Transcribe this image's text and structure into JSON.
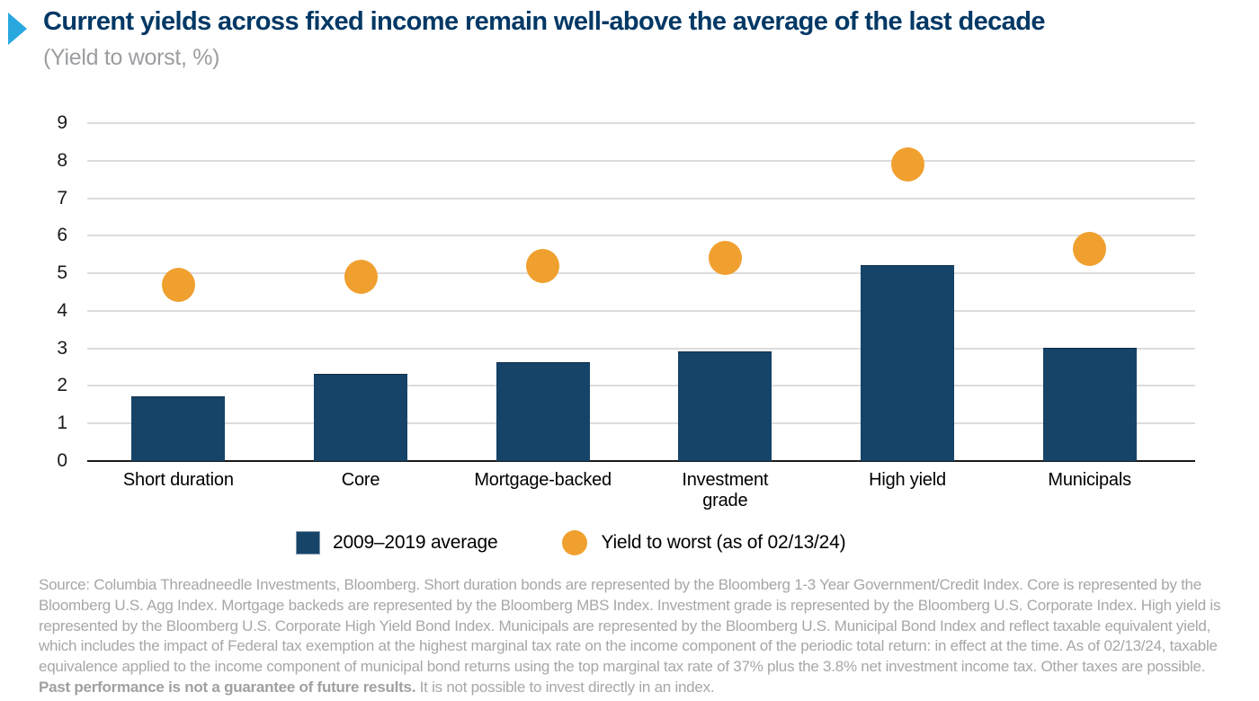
{
  "header": {
    "title": "Current yields across fixed income remain well-above the average of the last decade",
    "subtitle": "(Yield to worst, %)"
  },
  "colors": {
    "bar_navy": "#164368",
    "dot_orange": "#F0A02F",
    "title_navy": "#003865",
    "arrow_cyan": "#29A8E0",
    "subtitle_gray": "#9B9DA0",
    "source_gray": "#A7A7A7",
    "gridline_gray": "#DCDCDC"
  },
  "chart_data": {
    "type": "bar",
    "categories": [
      "Short duration",
      "Core",
      "Mortgage-backed",
      "Investment\ngrade",
      "High yield",
      "Municipals"
    ],
    "series": [
      {
        "name": "2009–2019 average",
        "marker": "bar",
        "color": "#164368",
        "values": [
          1.7,
          2.3,
          2.6,
          2.9,
          5.2,
          3.0
        ]
      },
      {
        "name": "Yield to worst (as of 02/13/24)",
        "marker": "dot",
        "color": "#F0A02F",
        "values": [
          4.7,
          4.9,
          5.2,
          5.4,
          7.9,
          5.65
        ]
      }
    ],
    "title": "Current yields across fixed income remain well-above the average of the last decade",
    "subtitle": "(Yield to worst, %)",
    "xlabel": "",
    "ylabel": "Yield to worst, %",
    "ylim": [
      0,
      9
    ],
    "yticks": [
      0,
      1,
      2,
      3,
      4,
      5,
      6,
      7,
      8,
      9
    ],
    "grid": true,
    "legend_position": "bottom"
  },
  "source": {
    "text_before": "Source: Columbia Threadneedle Investments, Bloomberg. Short duration bonds are represented by the Bloomberg 1-3 Year Government/Credit Index. Core is represented by the Bloomberg U.S. Agg Index. Mortgage backeds are represented by the Bloomberg MBS Index. Investment grade is represented by the Bloomberg U.S. Corporate Index. High yield is represented by the Bloomberg U.S. Corporate High Yield Bond Index. Municipals are represented by the Bloomberg U.S. Municipal Bond Index and reflect taxable equivalent yield, which includes the impact of Federal tax exemption at the highest marginal tax rate on the income component of the periodic total return: in effect at the time. As of 02/13/24, taxable equivalence applied to the income component of municipal bond returns using the top marginal tax rate of 37% plus the 3.8% net investment income tax. Other taxes are possible. ",
    "text_bold": "Past performance is not a guarantee of future results.",
    "text_after": " It is not possible to invest directly in an index."
  }
}
